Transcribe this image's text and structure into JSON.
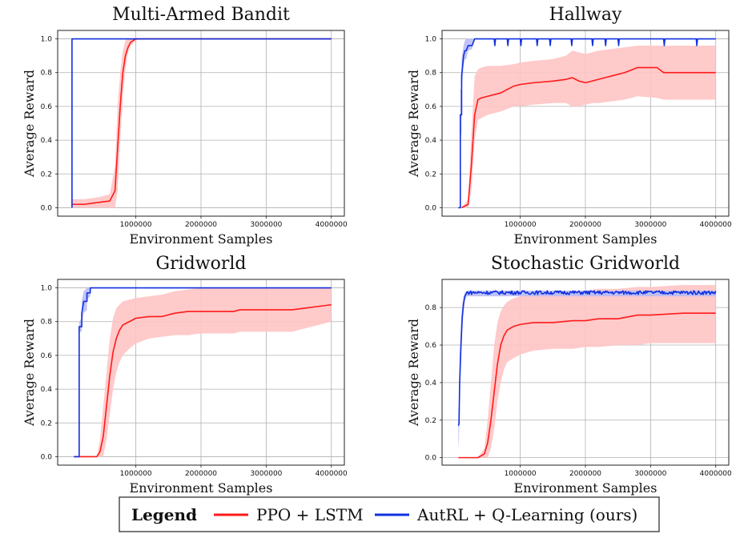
{
  "legend": {
    "title": "Legend",
    "colon": ":",
    "items": [
      {
        "label": "PPO + LSTM",
        "color": "#ff1a1a"
      },
      {
        "label": "AutRL + Q-Learning (ours)",
        "color": "#1030e0"
      }
    ]
  },
  "chart_data": [
    {
      "type": "line",
      "title": "Multi-Armed Bandit",
      "xlabel": "Environment Samples",
      "ylabel": "Average Reward",
      "xlim": [
        -200000,
        4200000
      ],
      "ylim": [
        -0.05,
        1.05
      ],
      "x_ticks": [
        1000000,
        2000000,
        3000000,
        4000000
      ],
      "x_tick_labels": [
        "1000000",
        "2000000",
        "3000000",
        "4000000"
      ],
      "y_ticks": [
        0.0,
        0.2,
        0.4,
        0.6,
        0.8,
        1.0
      ],
      "y_tick_labels": [
        "0.0",
        "0.2",
        "0.4",
        "0.6",
        "0.8",
        "1.0"
      ],
      "grid": true,
      "series": [
        {
          "name": "PPO + LSTM",
          "color": "#ff1a1a",
          "x": [
            20000,
            200000,
            400000,
            600000,
            680000,
            720000,
            760000,
            800000,
            840000,
            880000,
            920000,
            1000000,
            1100000,
            2000000,
            3000000,
            4000000
          ],
          "y": [
            0.02,
            0.02,
            0.03,
            0.04,
            0.1,
            0.35,
            0.6,
            0.8,
            0.9,
            0.95,
            0.98,
            1.0,
            1.0,
            1.0,
            1.0,
            1.0
          ],
          "lower": [
            0.0,
            0.0,
            0.0,
            0.0,
            0.0,
            0.1,
            0.4,
            0.65,
            0.82,
            0.92,
            0.96,
            0.99,
            1.0,
            1.0,
            1.0,
            1.0
          ],
          "upper": [
            0.05,
            0.05,
            0.06,
            0.08,
            0.25,
            0.6,
            0.8,
            0.93,
            0.99,
            1.0,
            1.0,
            1.0,
            1.0,
            1.0,
            1.0,
            1.0
          ]
        },
        {
          "name": "AutRL + Q-Learning (ours)",
          "color": "#1030e0",
          "x": [
            20000,
            20000,
            4000000
          ],
          "y": [
            0.0,
            1.0,
            1.0
          ]
        }
      ]
    },
    {
      "type": "line",
      "title": "Hallway",
      "xlabel": "Environment Samples",
      "ylabel": "Average Reward",
      "xlim": [
        -200000,
        4200000
      ],
      "ylim": [
        -0.05,
        1.05
      ],
      "x_ticks": [
        1000000,
        2000000,
        3000000,
        4000000
      ],
      "x_tick_labels": [
        "1000000",
        "2000000",
        "3000000",
        "4000000"
      ],
      "y_ticks": [
        0.0,
        0.2,
        0.4,
        0.6,
        0.8,
        1.0
      ],
      "y_tick_labels": [
        "0.0",
        "0.2",
        "0.4",
        "0.6",
        "0.8",
        "1.0"
      ],
      "grid": true,
      "series": [
        {
          "name": "PPO + LSTM",
          "color": "#ff1a1a",
          "x": [
            100000,
            200000,
            250000,
            300000,
            350000,
            400000,
            500000,
            700000,
            900000,
            1000000,
            1200000,
            1500000,
            1700000,
            1800000,
            1900000,
            2000000,
            2100000,
            2200000,
            2400000,
            2600000,
            2800000,
            3100000,
            3200000,
            3300000,
            3500000,
            4000000
          ],
          "y": [
            0.0,
            0.02,
            0.25,
            0.55,
            0.64,
            0.65,
            0.66,
            0.68,
            0.72,
            0.73,
            0.74,
            0.75,
            0.76,
            0.77,
            0.75,
            0.74,
            0.75,
            0.76,
            0.78,
            0.8,
            0.83,
            0.83,
            0.8,
            0.8,
            0.8,
            0.8
          ],
          "lower": [
            0.0,
            0.0,
            0.1,
            0.4,
            0.52,
            0.53,
            0.55,
            0.57,
            0.6,
            0.6,
            0.61,
            0.62,
            0.62,
            0.6,
            0.6,
            0.61,
            0.62,
            0.62,
            0.63,
            0.64,
            0.66,
            0.65,
            0.64,
            0.64,
            0.64,
            0.64
          ],
          "upper": [
            0.0,
            0.05,
            0.45,
            0.78,
            0.82,
            0.83,
            0.84,
            0.84,
            0.85,
            0.86,
            0.87,
            0.88,
            0.9,
            0.93,
            0.92,
            0.91,
            0.92,
            0.93,
            0.94,
            0.95,
            0.96,
            0.96,
            0.96,
            0.96,
            0.96,
            0.96
          ]
        },
        {
          "name": "AutRL + Q-Learning (ours)",
          "color": "#1030e0",
          "x": [
            50000,
            80000,
            80000,
            100000,
            100000,
            130000,
            150000,
            170000,
            200000,
            260000,
            300000,
            600000,
            610000,
            620000,
            800000,
            810000,
            820000,
            1000000,
            1010000,
            1020000,
            1250000,
            1260000,
            1270000,
            1450000,
            1460000,
            1470000,
            1780000,
            1790000,
            1800000,
            2100000,
            2110000,
            2120000,
            2300000,
            2310000,
            2320000,
            2500000,
            2510000,
            2520000,
            3200000,
            3210000,
            3220000,
            3700000,
            3710000,
            3720000,
            4000000
          ],
          "y": [
            0.0,
            0.0,
            0.55,
            0.55,
            0.78,
            0.9,
            0.93,
            0.93,
            0.96,
            0.96,
            1.0,
            1.0,
            0.96,
            1.0,
            1.0,
            0.96,
            1.0,
            1.0,
            0.96,
            1.0,
            1.0,
            0.96,
            1.0,
            1.0,
            0.96,
            1.0,
            1.0,
            0.96,
            1.0,
            1.0,
            0.96,
            1.0,
            1.0,
            0.96,
            1.0,
            1.0,
            0.96,
            1.0,
            1.0,
            0.96,
            1.0,
            1.0,
            0.96,
            1.0,
            1.0
          ],
          "lower": [
            0.0,
            0.0,
            0.4,
            0.45,
            0.68,
            0.84,
            0.88,
            0.88,
            0.93,
            0.94,
            1.0,
            1.0,
            1.0,
            1.0,
            1.0,
            1.0,
            1.0,
            1.0,
            1.0,
            1.0,
            1.0,
            1.0,
            1.0,
            1.0,
            1.0,
            1.0,
            1.0,
            1.0,
            1.0,
            1.0,
            1.0,
            1.0,
            1.0,
            1.0,
            1.0,
            1.0,
            1.0,
            1.0,
            1.0,
            1.0,
            1.0,
            1.0,
            1.0,
            1.0,
            1.0
          ],
          "upper": [
            0.0,
            0.0,
            0.7,
            0.7,
            0.88,
            0.96,
            0.99,
            1.0,
            1.0,
            1.0,
            1.0,
            1.0,
            1.0,
            1.0,
            1.0,
            1.0,
            1.0,
            1.0,
            1.0,
            1.0,
            1.0,
            1.0,
            1.0,
            1.0,
            1.0,
            1.0,
            1.0,
            1.0,
            1.0,
            1.0,
            1.0,
            1.0,
            1.0,
            1.0,
            1.0,
            1.0,
            1.0,
            1.0,
            1.0,
            1.0,
            1.0,
            1.0,
            1.0,
            1.0,
            1.0
          ]
        }
      ]
    },
    {
      "type": "line",
      "title": "Gridworld",
      "xlabel": "Environment Samples",
      "ylabel": "Average Reward",
      "xlim": [
        -200000,
        4200000
      ],
      "ylim": [
        -0.05,
        1.05
      ],
      "x_ticks": [
        1000000,
        2000000,
        3000000,
        4000000
      ],
      "x_tick_labels": [
        "1000000",
        "2000000",
        "3000000",
        "4000000"
      ],
      "y_ticks": [
        0.0,
        0.2,
        0.4,
        0.6,
        0.8,
        1.0
      ],
      "y_tick_labels": [
        "0.0",
        "0.2",
        "0.4",
        "0.6",
        "0.8",
        "1.0"
      ],
      "grid": true,
      "series": [
        {
          "name": "PPO + LSTM",
          "color": "#ff1a1a",
          "x": [
            50000,
            200000,
            300000,
            400000,
            450000,
            500000,
            550000,
            600000,
            650000,
            700000,
            750000,
            800000,
            900000,
            1000000,
            1200000,
            1400000,
            1600000,
            1800000,
            2000000,
            2500000,
            2600000,
            3000000,
            3400000,
            3600000,
            3800000,
            4000000
          ],
          "y": [
            0.0,
            0.0,
            0.0,
            0.0,
            0.03,
            0.12,
            0.3,
            0.48,
            0.62,
            0.7,
            0.75,
            0.78,
            0.8,
            0.82,
            0.83,
            0.83,
            0.85,
            0.86,
            0.86,
            0.86,
            0.87,
            0.87,
            0.87,
            0.88,
            0.89,
            0.9
          ],
          "lower": [
            0.0,
            0.0,
            0.0,
            0.0,
            0.0,
            0.0,
            0.1,
            0.25,
            0.4,
            0.5,
            0.56,
            0.6,
            0.64,
            0.67,
            0.7,
            0.71,
            0.72,
            0.72,
            0.73,
            0.73,
            0.74,
            0.74,
            0.74,
            0.76,
            0.78,
            0.8
          ],
          "upper": [
            0.0,
            0.0,
            0.0,
            0.0,
            0.1,
            0.3,
            0.5,
            0.7,
            0.82,
            0.88,
            0.9,
            0.92,
            0.93,
            0.94,
            0.95,
            0.96,
            0.98,
            0.99,
            1.0,
            1.0,
            1.0,
            1.0,
            1.0,
            1.0,
            1.0,
            1.0
          ]
        },
        {
          "name": "AutRL + Q-Learning (ours)",
          "color": "#1030e0",
          "x": [
            50000,
            130000,
            130000,
            170000,
            170000,
            200000,
            250000,
            250000,
            300000,
            300000,
            350000,
            350000,
            4000000
          ],
          "y": [
            0.0,
            0.0,
            0.77,
            0.77,
            0.85,
            0.92,
            0.92,
            0.97,
            0.97,
            1.0,
            1.0,
            1.0,
            1.0
          ],
          "lower": [
            0.0,
            0.0,
            0.74,
            0.74,
            0.78,
            0.85,
            0.87,
            0.93,
            0.95,
            1.0,
            1.0,
            1.0,
            1.0
          ],
          "upper": [
            0.0,
            0.0,
            0.8,
            0.82,
            0.92,
            0.98,
            1.0,
            1.0,
            1.0,
            1.0,
            1.0,
            1.0,
            1.0
          ]
        }
      ]
    },
    {
      "type": "line",
      "title": "Stochastic Gridworld",
      "xlabel": "Environment Samples",
      "ylabel": "Average Reward",
      "xlim": [
        -200000,
        4200000
      ],
      "ylim": [
        -0.04,
        0.95
      ],
      "x_ticks": [
        1000000,
        2000000,
        3000000,
        4000000
      ],
      "x_tick_labels": [
        "1000000",
        "2000000",
        "3000000",
        "4000000"
      ],
      "y_ticks": [
        0.0,
        0.2,
        0.4,
        0.6,
        0.8
      ],
      "y_tick_labels": [
        "0.0",
        "0.2",
        "0.4",
        "0.6",
        "0.8"
      ],
      "grid": true,
      "series": [
        {
          "name": "PPO + LSTM",
          "color": "#ff1a1a",
          "x": [
            50000,
            200000,
            350000,
            450000,
            500000,
            550000,
            600000,
            650000,
            700000,
            750000,
            800000,
            900000,
            1000000,
            1200000,
            1500000,
            1800000,
            2000000,
            2200000,
            2500000,
            2800000,
            3000000,
            3500000,
            4000000
          ],
          "y": [
            0.0,
            0.0,
            0.0,
            0.02,
            0.08,
            0.2,
            0.35,
            0.5,
            0.6,
            0.65,
            0.68,
            0.7,
            0.71,
            0.72,
            0.72,
            0.73,
            0.73,
            0.74,
            0.74,
            0.76,
            0.76,
            0.77,
            0.77
          ],
          "lower": [
            0.0,
            0.0,
            0.0,
            0.0,
            0.0,
            0.05,
            0.15,
            0.3,
            0.4,
            0.47,
            0.51,
            0.53,
            0.55,
            0.57,
            0.58,
            0.58,
            0.59,
            0.59,
            0.6,
            0.6,
            0.61,
            0.61,
            0.61
          ],
          "upper": [
            0.0,
            0.0,
            0.0,
            0.05,
            0.2,
            0.4,
            0.6,
            0.72,
            0.78,
            0.81,
            0.83,
            0.85,
            0.86,
            0.87,
            0.88,
            0.89,
            0.89,
            0.9,
            0.9,
            0.91,
            0.91,
            0.92,
            0.92
          ]
        },
        {
          "name": "AutRL + Q-Learning (ours)",
          "color": "#1030e0",
          "x": [
            50000,
            60000,
            70000,
            80000,
            90000,
            110000,
            130000,
            150000,
            180000,
            4000000
          ],
          "y": [
            0.17,
            0.18,
            0.4,
            0.5,
            0.6,
            0.75,
            0.82,
            0.86,
            0.88,
            0.88
          ],
          "lower": [
            0.05,
            0.1,
            0.3,
            0.4,
            0.5,
            0.68,
            0.78,
            0.84,
            0.86,
            0.86
          ],
          "upper": [
            0.25,
            0.28,
            0.55,
            0.62,
            0.72,
            0.82,
            0.86,
            0.88,
            0.89,
            0.89
          ],
          "noise": 0.01
        }
      ]
    }
  ]
}
